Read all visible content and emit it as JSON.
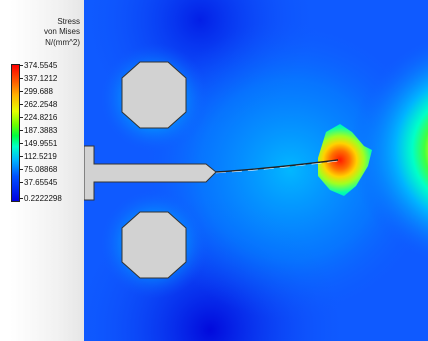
{
  "legend": {
    "title_line1": "Stress",
    "title_line2": "von Mises",
    "title_line3": "N/(mm^2)",
    "values": [
      "374.5545",
      "337.1212",
      "299.688",
      "262.2548",
      "224.8216",
      "187.3883",
      "149.9551",
      "112.5219",
      "75.08868",
      "37.65545",
      "0.2222298"
    ],
    "colors": {
      "max": "#ff0000",
      "high": "#ffb000",
      "mid": "#6cff00",
      "low_mid": "#00ffc8",
      "low": "#0050ff",
      "min": "#0000e0"
    }
  },
  "plot": {
    "background_color": "#0f5aff",
    "part_color": "#d2d2d2",
    "crack_color": "#222222"
  }
}
